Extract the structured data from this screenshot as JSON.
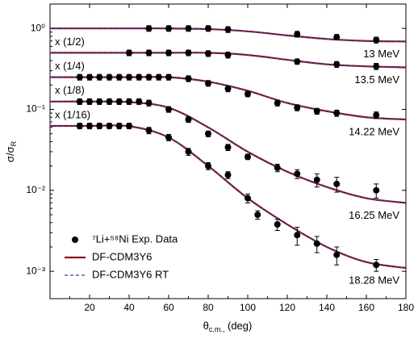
{
  "chart_data": {
    "type": "scatter",
    "y_label": {
      "main": "σ/σ",
      "sub": "R"
    },
    "x_label": {
      "main": "θ",
      "sub": "c.m.,",
      "rest": " (deg)"
    },
    "xlim": [
      0,
      180
    ],
    "xticks": [
      20,
      40,
      60,
      80,
      100,
      120,
      140,
      160,
      180
    ],
    "ylim": [
      0.00046,
      2
    ],
    "log_y": true,
    "yticks": [
      {
        "value": 0.001,
        "label": "10⁻³"
      },
      {
        "value": 0.01,
        "label": "10⁻²"
      },
      {
        "value": 0.1,
        "label": "10⁻¹"
      },
      {
        "value": 1,
        "label": "10⁰"
      }
    ],
    "legend": [
      {
        "name": "⁷Li+⁵⁸Ni Exp. Data",
        "color": "#000000"
      },
      {
        "name": "DF-CDM3Y6",
        "color": "#8b1010"
      },
      {
        "name": "DF-CDM3Y6 RT",
        "color": "#2a3fd0"
      }
    ],
    "legend_position": "lower left",
    "fit_x": [
      0,
      20,
      40,
      60,
      80,
      100,
      120,
      140,
      160,
      180
    ],
    "datasets": [
      {
        "energy": "13 MeV",
        "scale": null,
        "x": [
          50,
          60,
          70,
          80,
          90,
          125,
          145,
          165
        ],
        "values": [
          1.0,
          1.0,
          1.0,
          1.0,
          0.97,
          0.85,
          0.78,
          0.72
        ],
        "errors": [
          0.08,
          0.08,
          0.08,
          0.08,
          0.08,
          0.07,
          0.06,
          0.06
        ],
        "fit": [
          1.0,
          1.0,
          1.0,
          1.0,
          0.98,
          0.92,
          0.82,
          0.74,
          0.7,
          0.69
        ]
      },
      {
        "energy": "13.5 MeV",
        "scale": "x (1/2)",
        "x": [
          40,
          50,
          60,
          70,
          80,
          90,
          125,
          145,
          165
        ],
        "values": [
          0.5,
          0.5,
          0.5,
          0.5,
          0.49,
          0.47,
          0.39,
          0.36,
          0.34
        ],
        "errors": [
          0.04,
          0.04,
          0.04,
          0.04,
          0.04,
          0.04,
          0.03,
          0.03,
          0.03
        ],
        "fit": [
          0.5,
          0.5,
          0.5,
          0.5,
          0.5,
          0.47,
          0.41,
          0.36,
          0.34,
          0.33
        ]
      },
      {
        "energy": "14.22 MeV",
        "scale": "x (1/4)",
        "x": [
          15,
          20,
          25,
          30,
          35,
          40,
          45,
          50,
          55,
          60,
          70,
          80,
          90,
          100,
          115,
          125,
          135,
          145,
          165
        ],
        "values": [
          0.25,
          0.25,
          0.25,
          0.25,
          0.25,
          0.25,
          0.25,
          0.25,
          0.25,
          0.25,
          0.24,
          0.21,
          0.18,
          0.155,
          0.12,
          0.105,
          0.095,
          0.09,
          0.085
        ],
        "errors": [
          0.02,
          0.02,
          0.02,
          0.02,
          0.02,
          0.02,
          0.02,
          0.02,
          0.02,
          0.02,
          0.02,
          0.017,
          0.015,
          0.012,
          0.01,
          0.009,
          0.008,
          0.008,
          0.008
        ],
        "fit": [
          0.25,
          0.25,
          0.25,
          0.25,
          0.22,
          0.17,
          0.12,
          0.095,
          0.08,
          0.075
        ]
      },
      {
        "energy": "16.25 MeV",
        "scale": "x (1/8)",
        "x": [
          15,
          20,
          25,
          30,
          35,
          40,
          45,
          50,
          60,
          70,
          80,
          90,
          100,
          115,
          125,
          135,
          145,
          165
        ],
        "values": [
          0.125,
          0.125,
          0.125,
          0.125,
          0.125,
          0.125,
          0.125,
          0.12,
          0.1,
          0.075,
          0.05,
          0.034,
          0.026,
          0.019,
          0.016,
          0.0135,
          0.012,
          0.01
        ],
        "errors": [
          0.01,
          0.01,
          0.01,
          0.01,
          0.01,
          0.01,
          0.01,
          0.01,
          0.008,
          0.006,
          0.004,
          0.003,
          0.002,
          0.002,
          0.002,
          0.0025,
          0.0025,
          0.002
        ],
        "fit": [
          0.125,
          0.125,
          0.123,
          0.105,
          0.06,
          0.03,
          0.017,
          0.011,
          0.008,
          0.007
        ]
      },
      {
        "energy": "18.28 MeV",
        "scale": "x (1/16)",
        "x": [
          15,
          20,
          25,
          30,
          35,
          40,
          50,
          60,
          70,
          80,
          90,
          100,
          105,
          115,
          125,
          135,
          145,
          165
        ],
        "values": [
          0.0625,
          0.0625,
          0.0625,
          0.0625,
          0.0625,
          0.0625,
          0.055,
          0.045,
          0.03,
          0.02,
          0.0155,
          0.008,
          0.005,
          0.0038,
          0.0028,
          0.0022,
          0.0016,
          0.0012
        ],
        "errors": [
          0.005,
          0.005,
          0.005,
          0.005,
          0.005,
          0.005,
          0.005,
          0.004,
          0.003,
          0.002,
          0.0015,
          0.001,
          0.0006,
          0.0006,
          0.0007,
          0.0005,
          0.0004,
          0.0002
        ],
        "fit": [
          0.0625,
          0.0625,
          0.062,
          0.045,
          0.02,
          0.008,
          0.0038,
          0.002,
          0.0013,
          0.0011
        ]
      }
    ]
  }
}
